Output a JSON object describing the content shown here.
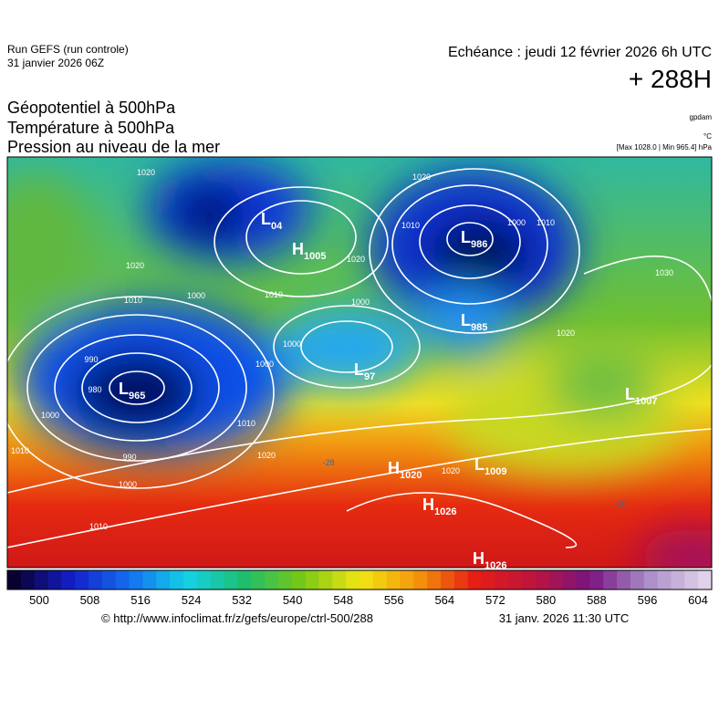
{
  "header": {
    "run_title": "Run GEFS (run controle)",
    "run_date": "31 janvier 2026 06Z",
    "forecast_time": "Echéance : jeudi 12 février 2026 6h UTC",
    "lead_time": "+ 288H"
  },
  "fields": [
    "Géopotentiel à 500hPa",
    "Température à 500hPa",
    "Pression au niveau de la mer"
  ],
  "units": {
    "geopotential": "gpdam",
    "temperature": "°C",
    "pressure": "[Max 1028.0 | Min 965.4] hPa"
  },
  "centers": [
    {
      "symbol": "L",
      "pressure": "04"
    },
    {
      "symbol": "H",
      "pressure": "1005"
    },
    {
      "symbol": "L",
      "pressure": "986"
    },
    {
      "symbol": "L",
      "pressure": "965"
    },
    {
      "symbol": "L",
      "pressure": "985"
    },
    {
      "symbol": "L",
      "pressure": "97"
    },
    {
      "symbol": "H",
      "pressure": "1020"
    },
    {
      "symbol": "L",
      "pressure": "1009"
    },
    {
      "symbol": "H",
      "pressure": "1026"
    },
    {
      "symbol": "H",
      "pressure": "1026"
    },
    {
      "symbol": "L",
      "pressure": "1007"
    }
  ],
  "contour_labels": [
    "1020",
    "1020",
    "1010",
    "1000",
    "990",
    "980",
    "1000",
    "990",
    "1000",
    "1010",
    "1010",
    "1000",
    "1010",
    "1020",
    "1000",
    "1010",
    "1020",
    "1020",
    "1010",
    "1000",
    "1010",
    "1030",
    "1020",
    "1020",
    "1000",
    "-20",
    "-28"
  ],
  "colorbar_ticks": [
    500,
    508,
    516,
    524,
    532,
    540,
    548,
    556,
    564,
    572,
    580,
    588,
    596,
    604
  ],
  "footer": {
    "source": "© http://www.infoclimat.fr/z/gefs/europe/ctrl-500/288",
    "generated": "31 janv. 2026 11:30 UTC"
  }
}
